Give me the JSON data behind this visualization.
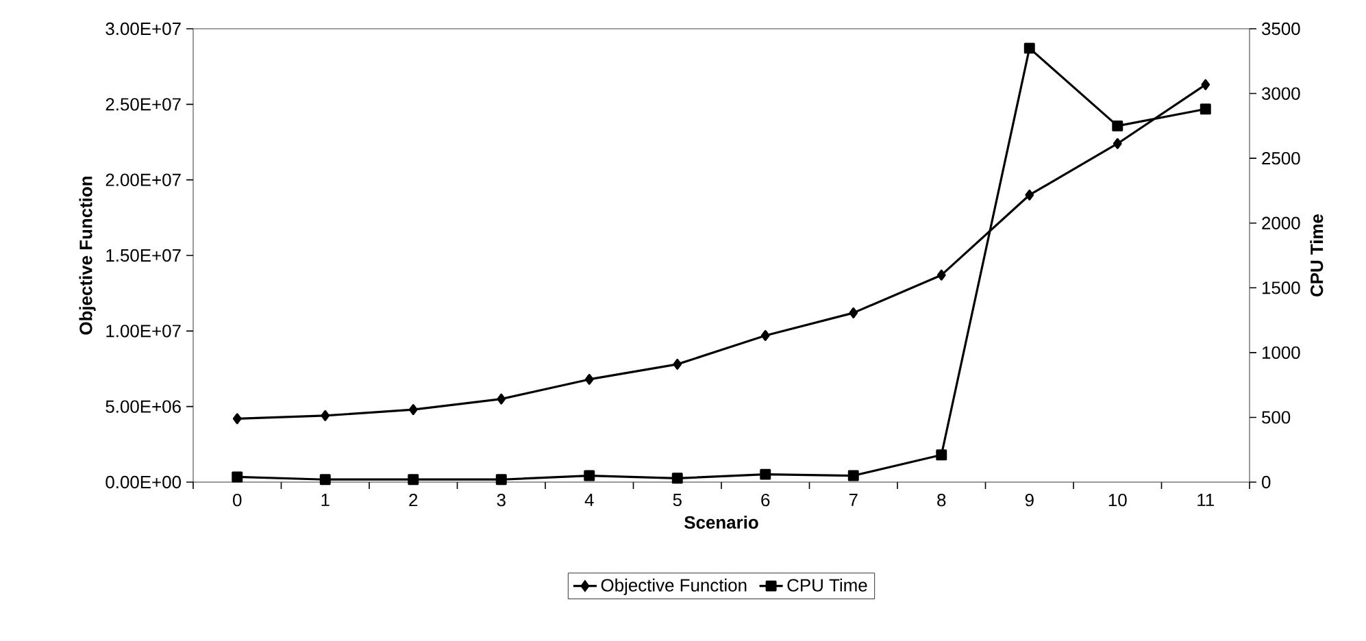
{
  "chart_data": {
    "type": "line",
    "xlabel": "Scenario",
    "ylabel": "Objective Function",
    "y2label": "CPU Time",
    "categories": [
      "0",
      "1",
      "2",
      "3",
      "4",
      "5",
      "6",
      "7",
      "8",
      "9",
      "10",
      "11"
    ],
    "series": [
      {
        "name": "Objective Function",
        "color": "#000000",
        "marker": "diamond",
        "values": [
          4200000,
          4400000,
          4800000,
          5500000,
          6800000,
          7800000,
          9700000,
          11200000,
          13700000,
          19000000,
          22400000,
          26300000
        ]
      },
      {
        "name": "CPU Time",
        "color": "#000000",
        "marker": "square",
        "axis": "y2",
        "values": [
          40,
          20,
          20,
          20,
          50,
          30,
          60,
          50,
          210,
          3350,
          2750,
          2880
        ]
      }
    ],
    "ylim": [
      0,
      30000000
    ],
    "yticks": [
      {
        "value": 0,
        "label": "0.00E+00"
      },
      {
        "value": 5000000,
        "label": "5.00E+06"
      },
      {
        "value": 10000000,
        "label": "1.00E+07"
      },
      {
        "value": 15000000,
        "label": "1.50E+07"
      },
      {
        "value": 20000000,
        "label": "2.00E+07"
      },
      {
        "value": 25000000,
        "label": "2.50E+07"
      },
      {
        "value": 30000000,
        "label": "3.00E+07"
      }
    ],
    "y2lim": [
      0,
      3500
    ],
    "y2ticks": [
      0,
      500,
      1000,
      1500,
      2000,
      2500,
      3000,
      3500
    ],
    "grid": false,
    "legend": "bottom",
    "line_style": "solid"
  }
}
